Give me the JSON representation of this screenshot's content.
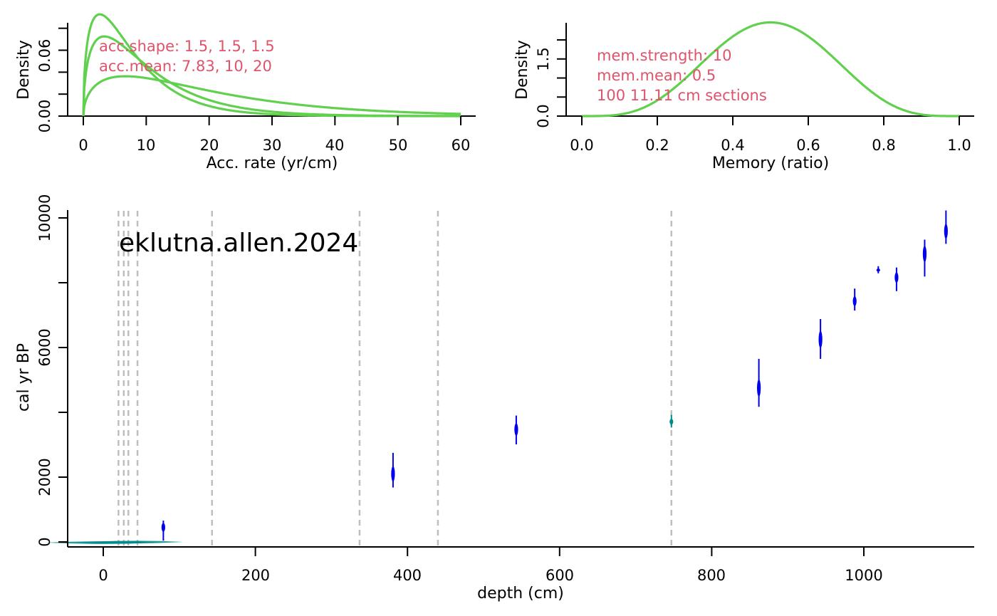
{
  "chart_data": [
    {
      "type": "line",
      "xlabel": "Acc. rate (yr/cm)",
      "ylabel": "Density",
      "xlim": [
        0,
        60
      ],
      "ylim": [
        0,
        0.085
      ],
      "xticks": [
        "0",
        "10",
        "20",
        "30",
        "40",
        "50",
        "60"
      ],
      "yticks": [
        "0.00",
        "0.06"
      ],
      "distribution": "gamma",
      "series": [
        {
          "shape": 1.5,
          "mean": 7.83
        },
        {
          "shape": 1.5,
          "mean": 10
        },
        {
          "shape": 1.5,
          "mean": 20
        }
      ],
      "annotations": [
        "acc.shape:  1.5, 1.5, 1.5",
        "acc.mean:  7.83, 10, 20"
      ],
      "annotation_color": "#DF536B",
      "line_color": "#61D04F"
    },
    {
      "type": "line",
      "xlabel": "Memory (ratio)",
      "ylabel": "Density",
      "xlim": [
        0,
        1
      ],
      "ylim": [
        0,
        2.45
      ],
      "xticks": [
        "0.0",
        "0.2",
        "0.4",
        "0.6",
        "0.8",
        "1.0"
      ],
      "yticks": [
        "0.0",
        "1.5"
      ],
      "distribution": "beta",
      "strength": 10,
      "mean": 0.5,
      "annotations": [
        "mem.strength: 10",
        "mem.mean: 0.5",
        "100 11.11 cm sections"
      ],
      "annotation_color": "#DF536B",
      "line_color": "#61D04F"
    },
    {
      "type": "scatter",
      "title": "eklutna.allen.2024",
      "xlabel": "depth (cm)",
      "ylabel": "cal yr  BP",
      "xlim": [
        -75,
        1140
      ],
      "ylim": [
        -150,
        10300
      ],
      "xticks": [
        "0",
        "200",
        "400",
        "600",
        "800",
        "1000"
      ],
      "yticks": [
        "0",
        "2000",
        "6000",
        "10000"
      ],
      "boundary_color": "#BEBEBE",
      "boundaries": [
        20,
        27,
        33,
        45,
        143,
        337,
        440,
        747
      ],
      "calibrated_dates": [
        {
          "depth": 79,
          "age": 450,
          "min": 40,
          "max": 660,
          "color": "#0000EE"
        },
        {
          "depth": 381,
          "age": 2100,
          "min": 1680,
          "max": 2750,
          "color": "#0000EE"
        },
        {
          "depth": 543,
          "age": 3470,
          "min": 3010,
          "max": 3900,
          "color": "#0000EE"
        },
        {
          "depth": 747,
          "age": 3710,
          "min": 3530,
          "max": 3920,
          "color": "#008B8B"
        },
        {
          "depth": 862,
          "age": 4750,
          "min": 4170,
          "max": 5650,
          "color": "#0000EE"
        },
        {
          "depth": 943,
          "age": 6250,
          "min": 5650,
          "max": 6880,
          "color": "#0000EE"
        },
        {
          "depth": 988,
          "age": 7430,
          "min": 7140,
          "max": 7820,
          "color": "#0000EE"
        },
        {
          "depth": 1019,
          "age": 8390,
          "min": 8290,
          "max": 8510,
          "color": "#0000EE"
        },
        {
          "depth": 1043,
          "age": 8160,
          "min": 7740,
          "max": 8470,
          "color": "#0000EE"
        },
        {
          "depth": 1080,
          "age": 8890,
          "min": 8190,
          "max": 9330,
          "color": "#0000EE"
        },
        {
          "depth": 1108,
          "age": 9590,
          "min": 9200,
          "max": 10230,
          "color": "#0000EE"
        }
      ],
      "modern_dates_color": "#008B8B",
      "modern_dates": [
        {
          "depth": 0,
          "age": -20,
          "min": -60,
          "max": 10,
          "half_width": 75
        },
        {
          "depth": 20,
          "age": -10,
          "min": -50,
          "max": 20,
          "half_width": 55
        },
        {
          "depth": 45,
          "age": 0,
          "min": -40,
          "max": 30,
          "half_width": 60
        }
      ]
    }
  ]
}
